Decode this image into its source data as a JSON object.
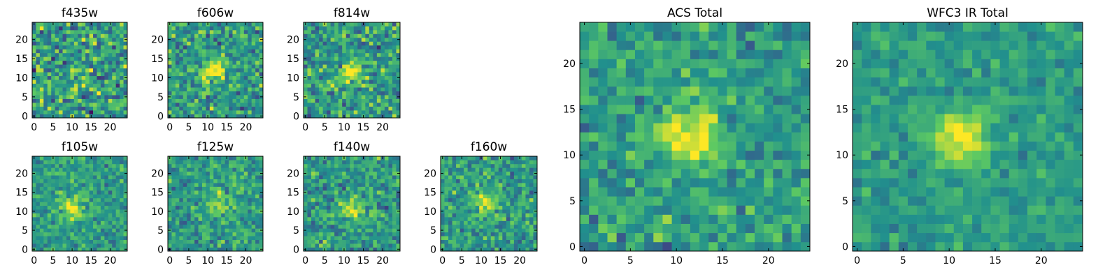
{
  "chart_data": [
    {
      "type": "heatmap",
      "title": "f435w",
      "xticks": [
        0,
        5,
        10,
        15,
        20
      ],
      "yticks": [
        0,
        5,
        10,
        15,
        20
      ],
      "xlim": [
        0,
        25
      ],
      "ylim": [
        0,
        25
      ],
      "grid_size": 25,
      "colormap": "viridis",
      "source_peak": [
        12,
        12
      ],
      "source_strength": 0.12,
      "noise": 0.5,
      "seed": 11
    },
    {
      "type": "heatmap",
      "title": "f606w",
      "xticks": [
        0,
        5,
        10,
        15,
        20
      ],
      "yticks": [
        0,
        5,
        10,
        15,
        20
      ],
      "xlim": [
        0,
        25
      ],
      "ylim": [
        0,
        25
      ],
      "grid_size": 25,
      "colormap": "viridis",
      "source_peak": [
        11.5,
        12
      ],
      "source_strength": 0.5,
      "noise": 0.4,
      "seed": 23
    },
    {
      "type": "heatmap",
      "title": "f814w",
      "xticks": [
        0,
        5,
        10,
        15,
        20
      ],
      "yticks": [
        0,
        5,
        10,
        15,
        20
      ],
      "xlim": [
        0,
        25
      ],
      "ylim": [
        0,
        25
      ],
      "grid_size": 25,
      "colormap": "viridis",
      "source_peak": [
        12,
        11.5
      ],
      "source_strength": 0.45,
      "noise": 0.42,
      "seed": 37
    },
    {
      "type": "heatmap",
      "title": "f105w",
      "xticks": [
        0,
        5,
        10,
        15,
        20
      ],
      "yticks": [
        0,
        5,
        10,
        15,
        20
      ],
      "xlim": [
        0,
        25
      ],
      "ylim": [
        0,
        25
      ],
      "grid_size": 25,
      "colormap": "viridis",
      "source_peak": [
        10,
        11
      ],
      "source_strength": 0.45,
      "noise": 0.28,
      "seed": 41
    },
    {
      "type": "heatmap",
      "title": "f125w",
      "xticks": [
        0,
        5,
        10,
        15,
        20
      ],
      "yticks": [
        0,
        5,
        10,
        15,
        20
      ],
      "xlim": [
        0,
        25
      ],
      "ylim": [
        0,
        25
      ],
      "grid_size": 25,
      "colormap": "viridis",
      "source_peak": [
        13,
        12
      ],
      "source_strength": 0.35,
      "noise": 0.32,
      "seed": 53
    },
    {
      "type": "heatmap",
      "title": "f140w",
      "xticks": [
        0,
        5,
        10,
        15,
        20
      ],
      "yticks": [
        0,
        5,
        10,
        15,
        20
      ],
      "xlim": [
        0,
        25
      ],
      "ylim": [
        0,
        25
      ],
      "grid_size": 25,
      "colormap": "viridis",
      "source_peak": [
        12,
        11
      ],
      "source_strength": 0.4,
      "noise": 0.34,
      "seed": 67
    },
    {
      "type": "heatmap",
      "title": "f160w",
      "xticks": [
        0,
        5,
        10,
        15,
        20
      ],
      "yticks": [
        0,
        5,
        10,
        15,
        20
      ],
      "xlim": [
        0,
        25
      ],
      "ylim": [
        0,
        25
      ],
      "grid_size": 25,
      "colormap": "viridis",
      "source_peak": [
        11,
        12
      ],
      "source_strength": 0.38,
      "noise": 0.34,
      "seed": 79
    },
    {
      "type": "heatmap",
      "title": "ACS Total",
      "xticks": [
        0,
        5,
        10,
        15,
        20
      ],
      "yticks": [
        0,
        5,
        10,
        15,
        20
      ],
      "xlim": [
        0,
        25
      ],
      "ylim": [
        0,
        25
      ],
      "grid_size": 25,
      "colormap": "viridis",
      "source_peak": [
        11.5,
        12
      ],
      "source_strength": 0.55,
      "noise": 0.3,
      "seed": 97
    },
    {
      "type": "heatmap",
      "title": "WFC3 IR Total",
      "xticks": [
        0,
        5,
        10,
        15,
        20
      ],
      "yticks": [
        0,
        5,
        10,
        15,
        20
      ],
      "xlim": [
        0,
        25
      ],
      "ylim": [
        0,
        25
      ],
      "grid_size": 25,
      "colormap": "viridis",
      "source_peak": [
        11.5,
        12
      ],
      "source_strength": 0.5,
      "noise": 0.2,
      "seed": 113
    }
  ],
  "colors": {
    "colormap_stops": [
      "#440154",
      "#3b528b",
      "#21908d",
      "#5dc962",
      "#fde725"
    ],
    "axis": "#000000",
    "text": "#000000",
    "background": "#ffffff"
  }
}
